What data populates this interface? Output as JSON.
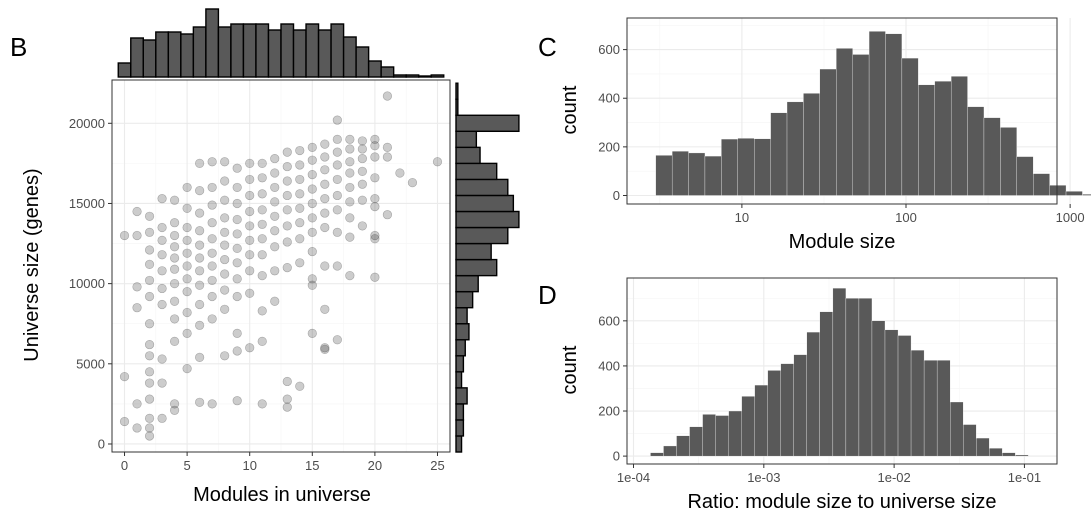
{
  "colors": {
    "bar": "#595959",
    "bar_outline": "#000000",
    "point": "#333333",
    "grid_major": "#ebebeb",
    "grid_minor": "#f5f5f5",
    "frame": "#333333",
    "tick_text": "#4d4d4d"
  },
  "chart_data": [
    {
      "panel": "B",
      "type": "scatter",
      "xlabel": "Modules in universe",
      "ylabel": "Universe size (genes)",
      "xlim": [
        -1,
        26
      ],
      "ylim": [
        -500,
        22700
      ],
      "xticks": [
        0,
        5,
        10,
        15,
        20,
        25
      ],
      "yticks": [
        0,
        5000,
        10000,
        15000,
        20000
      ],
      "xtick_labels": [
        "0",
        "5",
        "10",
        "15",
        "20",
        "25"
      ],
      "ytick_labels": [
        "0",
        "5000",
        "10000",
        "15000",
        "20000"
      ],
      "grid": true,
      "point_opacity": 0.25,
      "points": [
        [
          0,
          4200
        ],
        [
          0,
          1400
        ],
        [
          0,
          13000
        ],
        [
          1,
          14500
        ],
        [
          1,
          13000
        ],
        [
          1,
          9800
        ],
        [
          1,
          8500
        ],
        [
          1,
          2500
        ],
        [
          1,
          1000
        ],
        [
          2,
          14200
        ],
        [
          2,
          13200
        ],
        [
          2,
          12100
        ],
        [
          2,
          11200
        ],
        [
          2,
          10200
        ],
        [
          2,
          9200
        ],
        [
          2,
          7500
        ],
        [
          2,
          6200
        ],
        [
          2,
          5500
        ],
        [
          2,
          4500
        ],
        [
          2,
          3800
        ],
        [
          2,
          2800
        ],
        [
          2,
          1600
        ],
        [
          2,
          1000
        ],
        [
          2,
          500
        ],
        [
          3,
          15300
        ],
        [
          3,
          13500
        ],
        [
          3,
          12700
        ],
        [
          3,
          11800
        ],
        [
          3,
          10800
        ],
        [
          3,
          9700
        ],
        [
          3,
          8700
        ],
        [
          3,
          5300
        ],
        [
          3,
          3800
        ],
        [
          3,
          1600
        ],
        [
          4,
          15200
        ],
        [
          4,
          13800
        ],
        [
          4,
          13000
        ],
        [
          4,
          12300
        ],
        [
          4,
          11600
        ],
        [
          4,
          10900
        ],
        [
          4,
          10000
        ],
        [
          4,
          8900
        ],
        [
          4,
          7800
        ],
        [
          4,
          6400
        ],
        [
          4,
          2500
        ],
        [
          4,
          2100
        ],
        [
          5,
          16000
        ],
        [
          5,
          14700
        ],
        [
          5,
          13500
        ],
        [
          5,
          12700
        ],
        [
          5,
          11900
        ],
        [
          5,
          11100
        ],
        [
          5,
          10300
        ],
        [
          5,
          9500
        ],
        [
          5,
          8200
        ],
        [
          5,
          6900
        ],
        [
          5,
          4700
        ],
        [
          6,
          17500
        ],
        [
          6,
          15800
        ],
        [
          6,
          14400
        ],
        [
          6,
          13300
        ],
        [
          6,
          12400
        ],
        [
          6,
          11600
        ],
        [
          6,
          10800
        ],
        [
          6,
          9900
        ],
        [
          6,
          8700
        ],
        [
          6,
          7400
        ],
        [
          6,
          5400
        ],
        [
          6,
          2600
        ],
        [
          7,
          17600
        ],
        [
          7,
          16000
        ],
        [
          7,
          14900
        ],
        [
          7,
          13800
        ],
        [
          7,
          12800
        ],
        [
          7,
          11900
        ],
        [
          7,
          11100
        ],
        [
          7,
          10200
        ],
        [
          7,
          9200
        ],
        [
          7,
          7800
        ],
        [
          7,
          2500
        ],
        [
          8,
          17600
        ],
        [
          8,
          16400
        ],
        [
          8,
          15200
        ],
        [
          8,
          14100
        ],
        [
          8,
          13200
        ],
        [
          8,
          12400
        ],
        [
          8,
          11500
        ],
        [
          8,
          10600
        ],
        [
          8,
          9600
        ],
        [
          8,
          8400
        ],
        [
          8,
          5500
        ],
        [
          9,
          17200
        ],
        [
          9,
          16000
        ],
        [
          9,
          15000
        ],
        [
          9,
          14000
        ],
        [
          9,
          13100
        ],
        [
          9,
          12200
        ],
        [
          9,
          11300
        ],
        [
          9,
          10300
        ],
        [
          9,
          9200
        ],
        [
          9,
          6900
        ],
        [
          9,
          5800
        ],
        [
          9,
          2700
        ],
        [
          10,
          17500
        ],
        [
          10,
          16500
        ],
        [
          10,
          15500
        ],
        [
          10,
          14500
        ],
        [
          10,
          13600
        ],
        [
          10,
          12700
        ],
        [
          10,
          11800
        ],
        [
          10,
          10800
        ],
        [
          10,
          9400
        ],
        [
          10,
          6000
        ],
        [
          11,
          17500
        ],
        [
          11,
          16600
        ],
        [
          11,
          15600
        ],
        [
          11,
          14600
        ],
        [
          11,
          13700
        ],
        [
          11,
          12800
        ],
        [
          11,
          11800
        ],
        [
          11,
          10500
        ],
        [
          11,
          8300
        ],
        [
          11,
          6400
        ],
        [
          11,
          2500
        ],
        [
          12,
          17800
        ],
        [
          12,
          16900
        ],
        [
          12,
          16000
        ],
        [
          12,
          15100
        ],
        [
          12,
          14200
        ],
        [
          12,
          13300
        ],
        [
          12,
          12300
        ],
        [
          12,
          10800
        ],
        [
          12,
          8900
        ],
        [
          13,
          18200
        ],
        [
          13,
          17300
        ],
        [
          13,
          16400
        ],
        [
          13,
          15500
        ],
        [
          13,
          14600
        ],
        [
          13,
          13600
        ],
        [
          13,
          12600
        ],
        [
          13,
          11000
        ],
        [
          13,
          3900
        ],
        [
          13,
          2800
        ],
        [
          13,
          2300
        ],
        [
          14,
          18300
        ],
        [
          14,
          17400
        ],
        [
          14,
          16500
        ],
        [
          14,
          15600
        ],
        [
          14,
          14700
        ],
        [
          14,
          13800
        ],
        [
          14,
          12800
        ],
        [
          14,
          11300
        ],
        [
          14,
          3600
        ],
        [
          15,
          18500
        ],
        [
          15,
          17700
        ],
        [
          15,
          16800
        ],
        [
          15,
          15900
        ],
        [
          15,
          15000
        ],
        [
          15,
          14100
        ],
        [
          15,
          13200
        ],
        [
          15,
          12000
        ],
        [
          15,
          10300
        ],
        [
          15,
          9900
        ],
        [
          15,
          6900
        ],
        [
          16,
          18700
        ],
        [
          16,
          17900
        ],
        [
          16,
          17100
        ],
        [
          16,
          16200
        ],
        [
          16,
          15300
        ],
        [
          16,
          14400
        ],
        [
          16,
          13500
        ],
        [
          16,
          11100
        ],
        [
          16,
          8400
        ],
        [
          16,
          6000
        ],
        [
          16,
          5900
        ],
        [
          17,
          20200
        ],
        [
          17,
          19000
        ],
        [
          17,
          18200
        ],
        [
          17,
          17400
        ],
        [
          17,
          16500
        ],
        [
          17,
          15500
        ],
        [
          17,
          14600
        ],
        [
          17,
          13200
        ],
        [
          17,
          11100
        ],
        [
          17,
          6500
        ],
        [
          18,
          19000
        ],
        [
          18,
          18400
        ],
        [
          18,
          17600
        ],
        [
          18,
          16900
        ],
        [
          18,
          16000
        ],
        [
          18,
          15100
        ],
        [
          18,
          14100
        ],
        [
          18,
          12900
        ],
        [
          18,
          10500
        ],
        [
          19,
          18900
        ],
        [
          19,
          18400
        ],
        [
          19,
          17800
        ],
        [
          19,
          17000
        ],
        [
          19,
          16200
        ],
        [
          19,
          15200
        ],
        [
          19,
          13600
        ],
        [
          20,
          19000
        ],
        [
          20,
          18600
        ],
        [
          20,
          17900
        ],
        [
          20,
          16600
        ],
        [
          20,
          15300
        ],
        [
          20,
          14800
        ],
        [
          20,
          13000
        ],
        [
          20,
          12800
        ],
        [
          20,
          10400
        ],
        [
          21,
          21700
        ],
        [
          21,
          18500
        ],
        [
          21,
          17900
        ],
        [
          21,
          14300
        ],
        [
          22,
          16900
        ],
        [
          23,
          16300
        ],
        [
          25,
          17600
        ]
      ],
      "x_marginal_hist": {
        "type": "bar",
        "binwidth": 1,
        "x_centers": [
          0,
          1,
          2,
          3,
          4,
          5,
          6,
          7,
          8,
          9,
          10,
          11,
          12,
          13,
          14,
          15,
          16,
          17,
          18,
          19,
          20,
          21,
          22,
          23,
          24,
          25
        ],
        "heights": [
          14,
          39,
          37,
          45,
          45,
          43,
          50,
          68,
          50,
          53,
          53,
          53,
          47,
          53,
          47,
          53,
          47,
          53,
          40,
          30,
          16,
          10,
          2,
          2,
          1,
          2
        ]
      },
      "y_marginal_hist": {
        "type": "bar",
        "binwidth": 1000,
        "y_centers": [
          0,
          1000,
          2000,
          3000,
          4000,
          5000,
          6000,
          7000,
          8000,
          9000,
          10000,
          11000,
          12000,
          13000,
          14000,
          15000,
          16000,
          17000,
          18000,
          19000,
          20000,
          21000,
          22000
        ],
        "counts": [
          3,
          4,
          4,
          6,
          3,
          4,
          5,
          7,
          6,
          9,
          12,
          22,
          19,
          28,
          34,
          31,
          28,
          22,
          13,
          11,
          34,
          1,
          1
        ]
      }
    },
    {
      "panel": "C",
      "type": "bar",
      "xlabel": "Module size",
      "ylabel": "count",
      "xscale": "log10",
      "xlim_log10": [
        0.3,
        2.92
      ],
      "ylim": [
        -35,
        730
      ],
      "xticks": [
        10,
        100,
        1000
      ],
      "xtick_labels": [
        "10",
        "100",
        "1000"
      ],
      "yticks": [
        0,
        200,
        400,
        600
      ],
      "ytick_labels": [
        "0",
        "200",
        "400",
        "600"
      ],
      "grid": true,
      "bins_log10": {
        "start": 0.475,
        "width": 0.1,
        "counts": [
          165,
          182,
          175,
          162,
          232,
          235,
          233,
          340,
          385,
          420,
          520,
          605,
          580,
          675,
          665,
          565,
          455,
          470,
          490,
          365,
          320,
          280,
          160,
          90,
          42,
          17,
          5,
          0
        ]
      }
    },
    {
      "panel": "D",
      "type": "bar",
      "xlabel": "Ratio: module size to universe size",
      "ylabel": "count",
      "xscale": "log10",
      "xlim_log10": [
        -4.05,
        -0.75
      ],
      "ylim": [
        -35,
        790
      ],
      "xticks": [
        0.0001,
        0.001,
        0.01,
        0.1
      ],
      "xtick_labels": [
        "1e-04",
        "1e-03",
        "1e-02",
        "1e-01"
      ],
      "yticks": [
        0,
        200,
        400,
        600
      ],
      "ytick_labels": [
        "0",
        "200",
        "400",
        "600"
      ],
      "grid": true,
      "bins_log10": {
        "start": -3.87,
        "width": 0.1,
        "counts": [
          15,
          45,
          90,
          130,
          185,
          180,
          200,
          265,
          315,
          380,
          410,
          450,
          550,
          640,
          745,
          700,
          700,
          600,
          560,
          535,
          470,
          425,
          425,
          240,
          140,
          80,
          35,
          15,
          5,
          0
        ]
      }
    }
  ],
  "panels": {
    "b": {
      "letter": "B"
    },
    "c": {
      "letter": "C"
    },
    "d": {
      "letter": "D"
    }
  }
}
